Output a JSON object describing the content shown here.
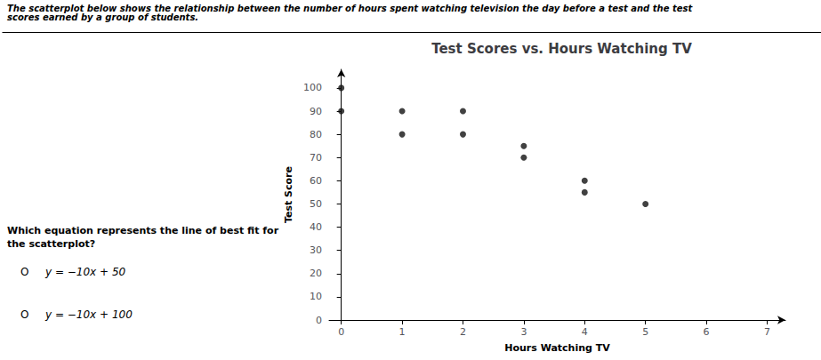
{
  "chart_data": {
    "type": "scatter",
    "title": "Test Scores vs. Hours Watching TV",
    "xlabel": "Hours Watching TV",
    "ylabel": "Test Score",
    "x": [
      0,
      0,
      1,
      1,
      2,
      2,
      3,
      3,
      4,
      4,
      5
    ],
    "values": [
      100,
      90,
      90,
      80,
      90,
      80,
      75,
      70,
      60,
      55,
      50
    ],
    "color": "#111111",
    "xlim": [
      -0.2,
      7.3
    ],
    "ylim": [
      0,
      108
    ],
    "xticks": [
      0,
      1,
      2,
      3,
      4,
      5,
      6,
      7
    ],
    "yticks": [
      0,
      10,
      20,
      30,
      40,
      50,
      60,
      70,
      80,
      90,
      100
    ],
    "grid": false,
    "annotations": [
      "The scatterplot below shows the relationship between the number of hours spent watching television the day before a test and the test scores earned by a group of students.",
      "Which equation represents the line of best fit for the scatterplot?",
      "O",
      "y = −10x + 50",
      "O",
      "y = −10x + 100"
    ]
  }
}
